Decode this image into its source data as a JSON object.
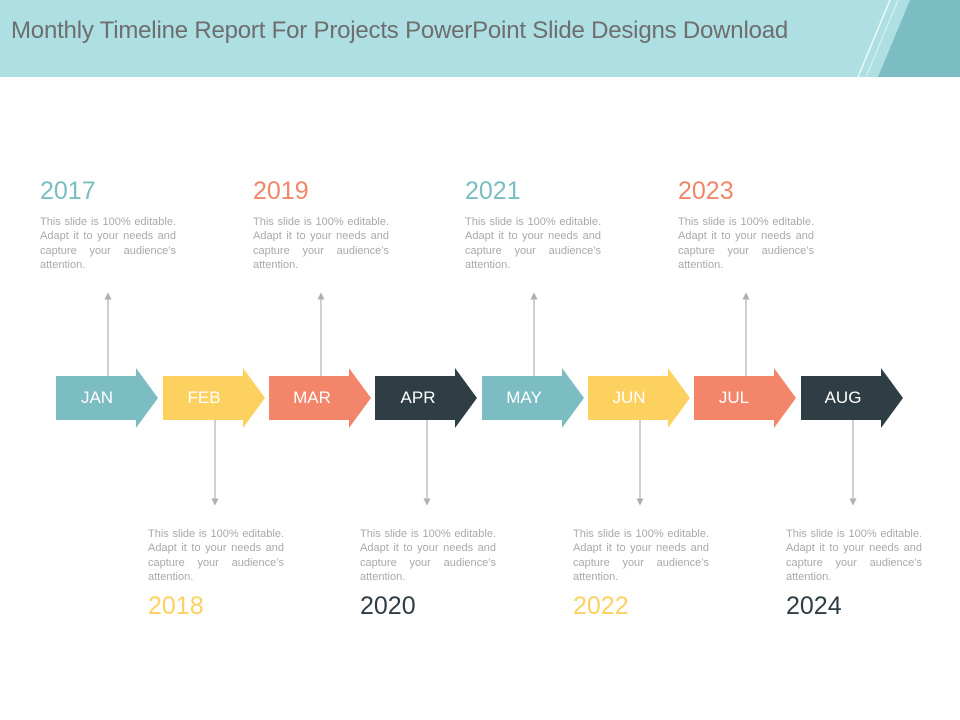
{
  "header": {
    "title": "Monthly Timeline Report For Projects PowerPoint Slide Designs Download"
  },
  "colors": {
    "teal": "#7bbdc2",
    "yellow": "#fcd160",
    "coral": "#f2856a",
    "dark": "#2f3d44",
    "header_bg": "#aedfe3",
    "text_gray": "#a9a9a9"
  },
  "months": [
    {
      "label": "JAN",
      "color": "teal"
    },
    {
      "label": "FEB",
      "color": "yellow"
    },
    {
      "label": "MAR",
      "color": "coral"
    },
    {
      "label": "APR",
      "color": "dark"
    },
    {
      "label": "MAY",
      "color": "teal"
    },
    {
      "label": "JUN",
      "color": "yellow"
    },
    {
      "label": "JUL",
      "color": "coral"
    },
    {
      "label": "AUG",
      "color": "dark"
    }
  ],
  "milestones": [
    {
      "year": "2017",
      "text": "This slide is 100% editable. Adapt it to your needs and capture your audience’s attention."
    },
    {
      "year": "2018",
      "text": "This slide is 100% editable. Adapt it to your needs and capture your audience’s attention."
    },
    {
      "year": "2019",
      "text": "This slide is 100% editable. Adapt it to your needs and capture your audience’s attention."
    },
    {
      "year": "2020",
      "text": "This slide is 100% editable. Adapt it to your needs and capture your audience’s attention."
    },
    {
      "year": "2021",
      "text": "This slide is 100% editable. Adapt it to your needs and capture your audience’s attention."
    },
    {
      "year": "2022",
      "text": "This slide is 100% editable. Adapt it to your needs and capture your audience’s attention."
    },
    {
      "year": "2023",
      "text": "This slide is 100% editable. Adapt it to your needs and capture your audience’s attention."
    },
    {
      "year": "2024",
      "text": "This slide is 100% editable. Adapt it to your needs and capture your audience’s attention."
    }
  ]
}
